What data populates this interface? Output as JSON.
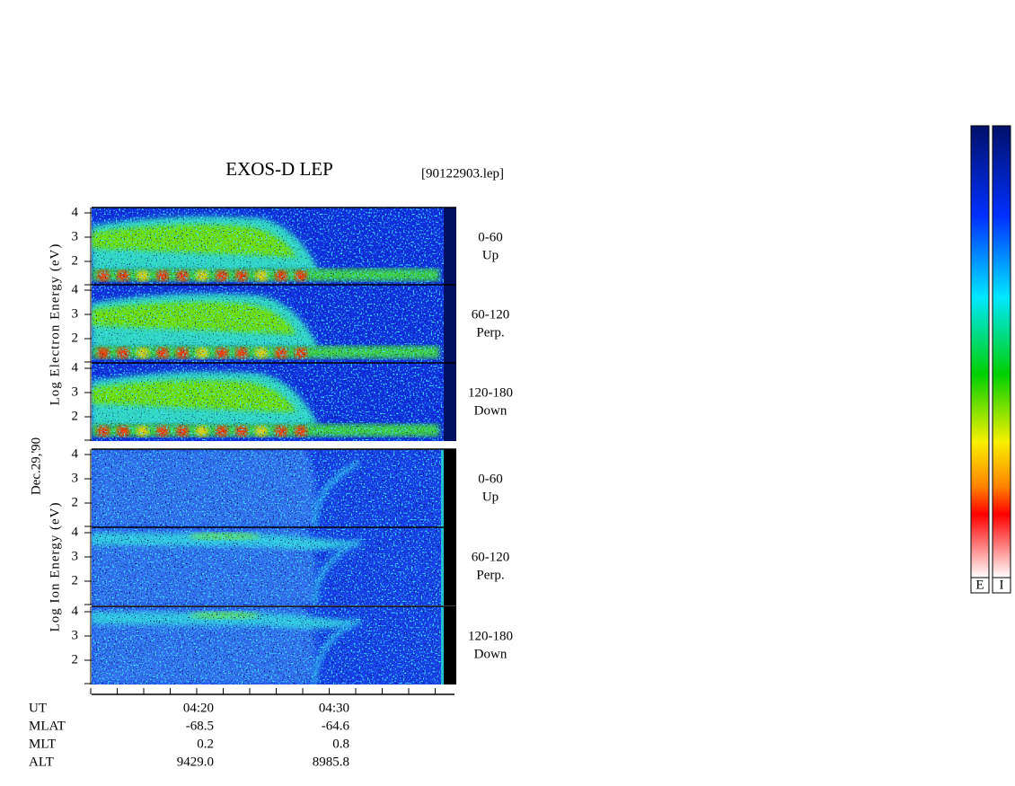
{
  "header": {
    "title": "EXOS-D LEP",
    "file": "[90122903.lep]"
  },
  "date": "Dec.29,'90",
  "groups": [
    {
      "label": "Log Electron Energy (eV)",
      "panels": [
        {
          "range": "0-60",
          "direction": "Up"
        },
        {
          "range": "60-120",
          "direction": "Perp."
        },
        {
          "range": "120-180",
          "direction": "Down"
        }
      ]
    },
    {
      "label": "Log Ion Energy (eV)",
      "panels": [
        {
          "range": "0-60",
          "direction": "Up"
        },
        {
          "range": "60-120",
          "direction": "Perp."
        },
        {
          "range": "120-180",
          "direction": "Down"
        }
      ]
    }
  ],
  "yticks": [
    2,
    3,
    4
  ],
  "orbit": {
    "labels": [
      "UT",
      "MLAT",
      "MLT",
      "ALT"
    ],
    "columns": [
      [
        "04:20",
        "-68.5",
        "0.2",
        "9429.0"
      ],
      [
        "04:30",
        "-64.6",
        "0.8",
        "8985.8"
      ]
    ]
  },
  "colorbars": [
    "E",
    "I"
  ]
}
